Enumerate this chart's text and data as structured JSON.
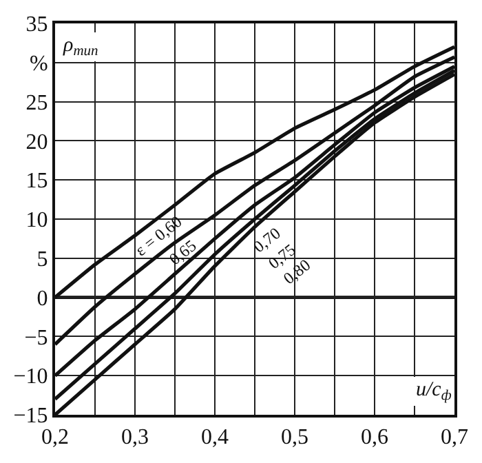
{
  "chart_data": {
    "type": "line",
    "xlabel": "u/c$_{ф}$",
    "ylabel": "ρ$_{тип}$",
    "x": [
      0.2,
      0.25,
      0.3,
      0.35,
      0.4,
      0.45,
      0.5,
      0.55,
      0.6,
      0.65,
      0.7
    ],
    "series": [
      {
        "color": "#111111",
        "values": [
          0,
          4.2,
          7.9,
          11.8,
          15.8,
          18.5,
          21.6,
          24,
          26.5,
          29.5,
          32
        ]
      },
      {
        "color": "#111111",
        "values": [
          -6,
          -1.2,
          3,
          7,
          10.5,
          14.3,
          17.5,
          21,
          24.5,
          28.2,
          30.7
        ]
      },
      {
        "color": "#111111",
        "values": [
          -10,
          -5.5,
          -1.5,
          3,
          7.5,
          11.8,
          15.3,
          19.5,
          23.6,
          26.8,
          29.5
        ]
      },
      {
        "color": "#111111",
        "values": [
          -13,
          -8.5,
          -4,
          0.5,
          5.5,
          10,
          14.3,
          18.7,
          22.8,
          26.1,
          29
        ]
      },
      {
        "color": "#111111",
        "values": [
          -15,
          -10.5,
          -6,
          -1.5,
          4,
          9,
          13.5,
          18,
          22.3,
          25.6,
          28.5
        ]
      }
    ],
    "annotations": [
      "ε = 0,60",
      "0,65",
      "0,70",
      "0,75",
      "0,80"
    ],
    "ref_lines": [
      {
        "axis": "y",
        "value": 0,
        "color": "#111111"
      }
    ],
    "xlim": [
      0.2,
      0.7
    ],
    "ylim": [
      -15,
      35
    ],
    "xticks": [
      {
        "value": 0.2,
        "label": "0,2"
      },
      {
        "value": 0.25,
        "label": null
      },
      {
        "value": 0.3,
        "label": "0,3"
      },
      {
        "value": 0.35,
        "label": null
      },
      {
        "value": 0.4,
        "label": "0,4"
      },
      {
        "value": 0.45,
        "label": null
      },
      {
        "value": 0.5,
        "label": "0,5"
      },
      {
        "value": 0.55,
        "label": null
      },
      {
        "value": 0.6,
        "label": "0,6"
      },
      {
        "value": 0.65,
        "label": null
      },
      {
        "value": 0.7,
        "label": "0,7"
      }
    ],
    "yticks": [
      -15,
      -10,
      -5,
      0,
      5,
      10,
      15,
      20,
      25,
      {
        "value": 30,
        "label": "%"
      },
      35
    ],
    "grid": true,
    "marker": "none",
    "line_style": "solid"
  }
}
